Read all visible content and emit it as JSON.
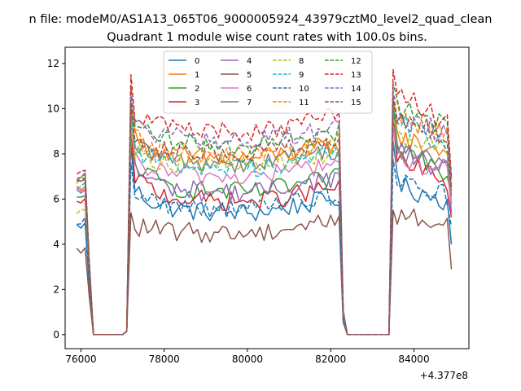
{
  "chart_data": {
    "type": "line",
    "suptitle": "n file: modeM0/AS1A13_065T06_9000005924_43979cztM0_level2_quad_clean",
    "title": "Quadrant 1 module wise count rates with 100.0s bins.",
    "xlabel": "",
    "ylabel": "",
    "x_offset_label": "+4.377e8",
    "xlim": [
      75620,
      85320
    ],
    "ylim": [
      -0.62,
      12.72
    ],
    "xticks": [
      76000,
      78000,
      80000,
      82000,
      84000
    ],
    "yticks": [
      0,
      2,
      4,
      6,
      8,
      10,
      12
    ],
    "grid": false,
    "legend": {
      "placement": "upper-center",
      "ncol": 4
    },
    "segments": [
      {
        "x_start": 75900,
        "x_end": 76300,
        "kind": "decay"
      },
      {
        "x_start": 76300,
        "x_end": 77100,
        "kind": "zero"
      },
      {
        "x_start": 77100,
        "x_end": 77200,
        "kind": "rise"
      },
      {
        "x_start": 77200,
        "x_end": 82200,
        "kind": "plateau"
      },
      {
        "x_start": 82200,
        "x_end": 82400,
        "kind": "decay"
      },
      {
        "x_start": 82400,
        "x_end": 83400,
        "kind": "zero"
      },
      {
        "x_start": 83400,
        "x_end": 83500,
        "kind": "rise"
      },
      {
        "x_start": 83500,
        "x_end": 84900,
        "kind": "plateau"
      }
    ],
    "series": [
      {
        "name": "0",
        "color": "#1f77b4",
        "dash": false,
        "start_level": 4.8,
        "peak": 8.4,
        "plateau": 5.4,
        "end_plateau": 6.6,
        "end_value": 4.0
      },
      {
        "name": "1",
        "color": "#ff7f0e",
        "dash": false,
        "start_level": 6.5,
        "peak": 10.2,
        "plateau": 7.8,
        "end_plateau": 8.7,
        "end_value": 5.8
      },
      {
        "name": "2",
        "color": "#2ca02c",
        "dash": false,
        "start_level": 6.0,
        "peak": 10.0,
        "plateau": 6.3,
        "end_plateau": 8.3,
        "end_value": 6.1
      },
      {
        "name": "3",
        "color": "#d62728",
        "dash": false,
        "start_level": 5.8,
        "peak": 9.2,
        "plateau": 5.9,
        "end_plateau": 7.7,
        "end_value": 5.2
      },
      {
        "name": "4",
        "color": "#9467bd",
        "dash": false,
        "start_level": 6.3,
        "peak": 9.4,
        "plateau": 6.3,
        "end_plateau": 8.2,
        "end_value": 5.4
      },
      {
        "name": "5",
        "color": "#8c564b",
        "dash": false,
        "start_level": 3.7,
        "peak": 5.4,
        "plateau": 4.5,
        "end_plateau": 5.3,
        "end_value": 2.9
      },
      {
        "name": "6",
        "color": "#e377c2",
        "dash": false,
        "start_level": 6.3,
        "peak": 9.0,
        "plateau": 7.0,
        "end_plateau": 7.8,
        "end_value": 5.8
      },
      {
        "name": "7",
        "color": "#7f7f7f",
        "dash": false,
        "start_level": 6.7,
        "peak": 9.6,
        "plateau": 7.6,
        "end_plateau": 8.0,
        "end_value": 6.2
      },
      {
        "name": "8",
        "color": "#bcbd22",
        "dash": true,
        "start_level": 5.5,
        "peak": 9.4,
        "plateau": 7.5,
        "end_plateau": 9.0,
        "end_value": 6.6
      },
      {
        "name": "9",
        "color": "#17becf",
        "dash": true,
        "start_level": 6.6,
        "peak": 9.8,
        "plateau": 7.4,
        "end_plateau": 9.5,
        "end_value": 6.5
      },
      {
        "name": "10",
        "color": "#1f77b4",
        "dash": true,
        "start_level": 5.0,
        "peak": 7.6,
        "plateau": 5.6,
        "end_plateau": 6.9,
        "end_value": 4.8
      },
      {
        "name": "11",
        "color": "#ff7f0e",
        "dash": true,
        "start_level": 6.8,
        "peak": 10.4,
        "plateau": 7.9,
        "end_plateau": 9.8,
        "end_value": 6.3
      },
      {
        "name": "12",
        "color": "#2ca02c",
        "dash": true,
        "start_level": 6.9,
        "peak": 10.9,
        "plateau": 8.4,
        "end_plateau": 10.1,
        "end_value": 6.9
      },
      {
        "name": "13",
        "color": "#d62728",
        "dash": true,
        "start_level": 7.2,
        "peak": 11.5,
        "plateau": 9.0,
        "end_plateau": 10.5,
        "end_value": 7.0
      },
      {
        "name": "14",
        "color": "#9467bd",
        "dash": true,
        "start_level": 7.0,
        "peak": 10.6,
        "plateau": 8.6,
        "end_plateau": 9.5,
        "end_value": 6.7
      },
      {
        "name": "15",
        "color": "#8c564b",
        "dash": true,
        "start_level": 6.9,
        "peak": 10.3,
        "plateau": 8.0,
        "end_plateau": 9.6,
        "end_value": 6.4
      }
    ]
  }
}
